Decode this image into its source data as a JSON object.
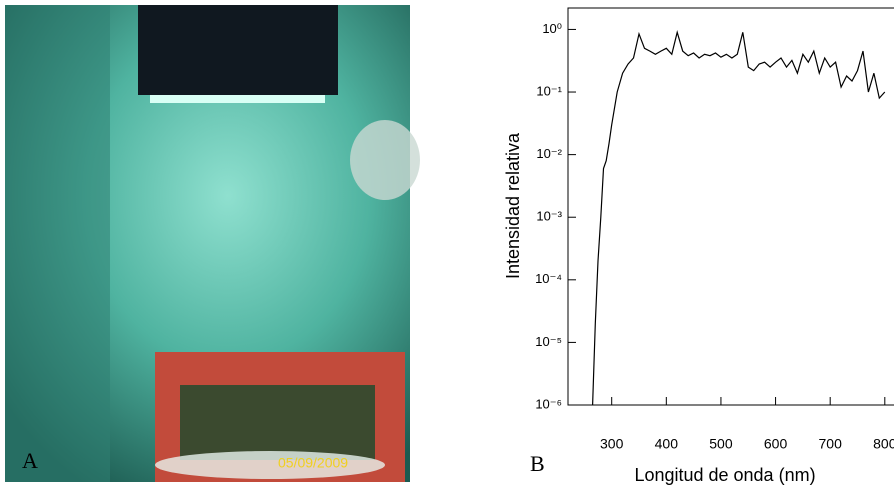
{
  "photo": {
    "panel_label": "A",
    "timestamp": "05/09/2009"
  },
  "chart_data": {
    "type": "line",
    "panel_label": "B",
    "x_label": "Longitud de onda (nm)",
    "y_label": "Intensidad relativa",
    "x": [
      265,
      270,
      275,
      280,
      285,
      290,
      295,
      300,
      310,
      320,
      330,
      340,
      350,
      360,
      370,
      380,
      390,
      400,
      410,
      420,
      430,
      440,
      450,
      460,
      470,
      480,
      490,
      500,
      510,
      520,
      530,
      540,
      550,
      560,
      570,
      580,
      590,
      600,
      610,
      620,
      630,
      640,
      650,
      660,
      670,
      680,
      690,
      700,
      710,
      720,
      730,
      740,
      750,
      760,
      770,
      780,
      790,
      800
    ],
    "values": [
      1e-06,
      2e-05,
      0.0002,
      0.001,
      0.006,
      0.008,
      0.015,
      0.03,
      0.1,
      0.2,
      0.28,
      0.35,
      0.85,
      0.5,
      0.45,
      0.4,
      0.45,
      0.5,
      0.4,
      0.9,
      0.45,
      0.38,
      0.42,
      0.35,
      0.4,
      0.38,
      0.42,
      0.36,
      0.4,
      0.35,
      0.4,
      0.9,
      0.25,
      0.22,
      0.28,
      0.3,
      0.25,
      0.3,
      0.35,
      0.25,
      0.32,
      0.2,
      0.4,
      0.3,
      0.45,
      0.2,
      0.35,
      0.25,
      0.3,
      0.12,
      0.18,
      0.15,
      0.22,
      0.45,
      0.1,
      0.2,
      0.08,
      0.1
    ],
    "color": "#000000",
    "xlim": [
      220,
      815
    ],
    "xticks": [
      300,
      400,
      500,
      600,
      700,
      800
    ],
    "ylim": [
      1e-06,
      2.2
    ],
    "ylog": true,
    "yticks": [
      {
        "value": 1,
        "label": "10⁰"
      },
      {
        "value": 0.1,
        "label": "10⁻¹"
      },
      {
        "value": 0.01,
        "label": "10⁻²"
      },
      {
        "value": 0.001,
        "label": "10⁻³"
      },
      {
        "value": 0.0001,
        "label": "10⁻⁴"
      },
      {
        "value": 1e-05,
        "label": "10⁻⁵"
      },
      {
        "value": 1e-06,
        "label": "10⁻⁶"
      }
    ]
  }
}
